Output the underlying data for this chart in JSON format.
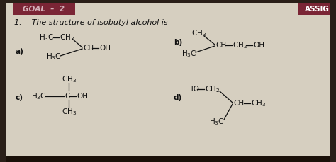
{
  "background_color": "#d6cfc0",
  "paper_color": "#e8e4dc",
  "header_bg": "#7a2535",
  "header_text": "GOAL  –  2",
  "assign_text": "ASSIG",
  "question_text": "1.    The structure of isobutyl alcohol is",
  "title_fontsize": 8,
  "chem_fontsize": 7.5,
  "fig_width": 4.74,
  "fig_height": 2.29,
  "text_color": "#1a1a1a"
}
